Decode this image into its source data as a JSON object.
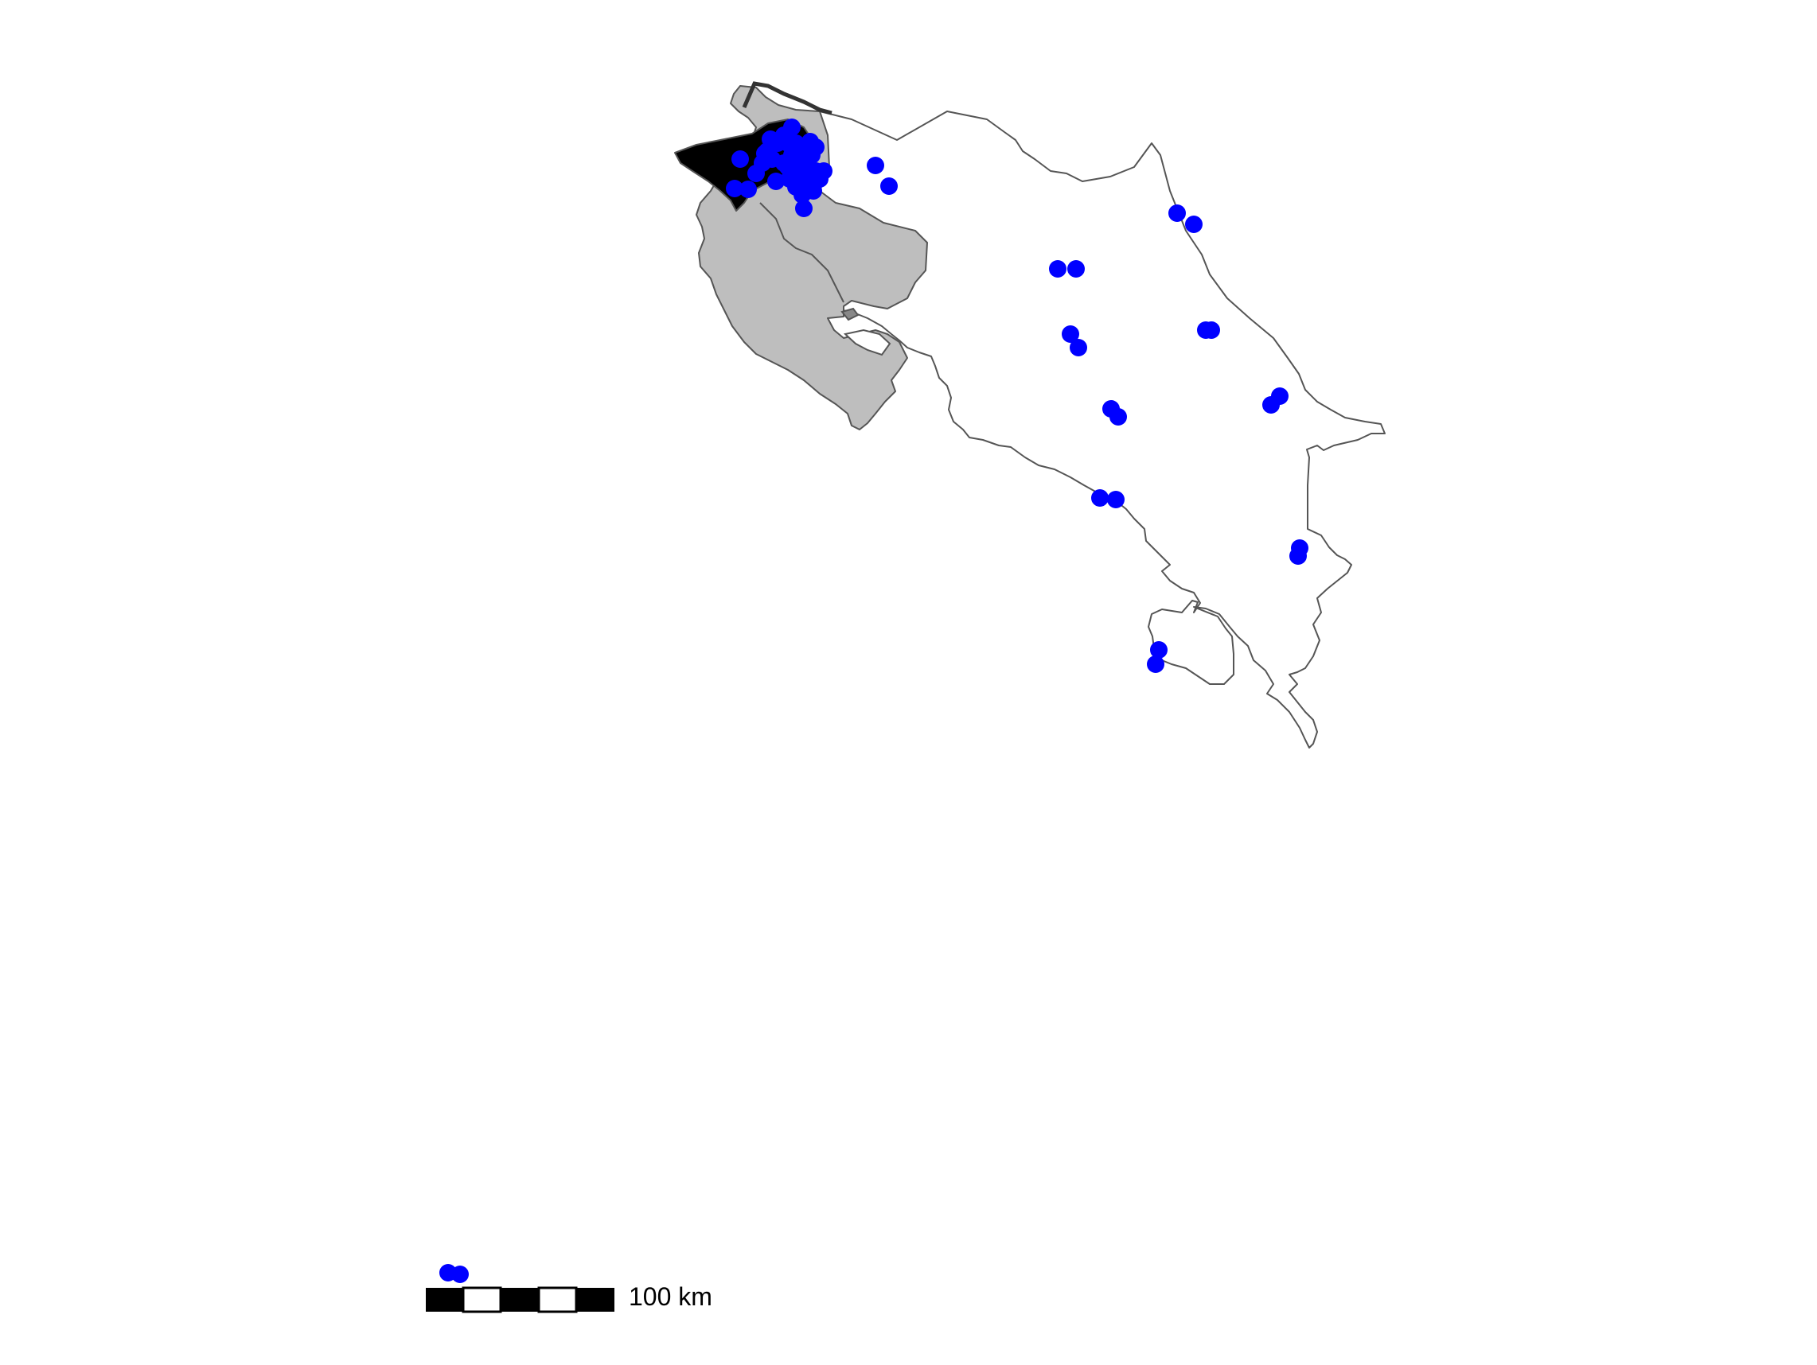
{
  "map": {
    "colors": {
      "background": "#ffffff",
      "country_fill": "#ffffff",
      "region_gray_fill": "#bebebe",
      "region_black_fill": "#000000",
      "outline": "#555555",
      "occurrence_point": "#0000ff",
      "scale_dark": "#000000",
      "scale_light": "#ffffff"
    },
    "occurrence_points": {
      "count_visible": 58,
      "color_name": "blue"
    },
    "scale_bar": {
      "label": "100 km",
      "segments": 5
    },
    "icons": {
      "point": "dot-icon"
    }
  }
}
